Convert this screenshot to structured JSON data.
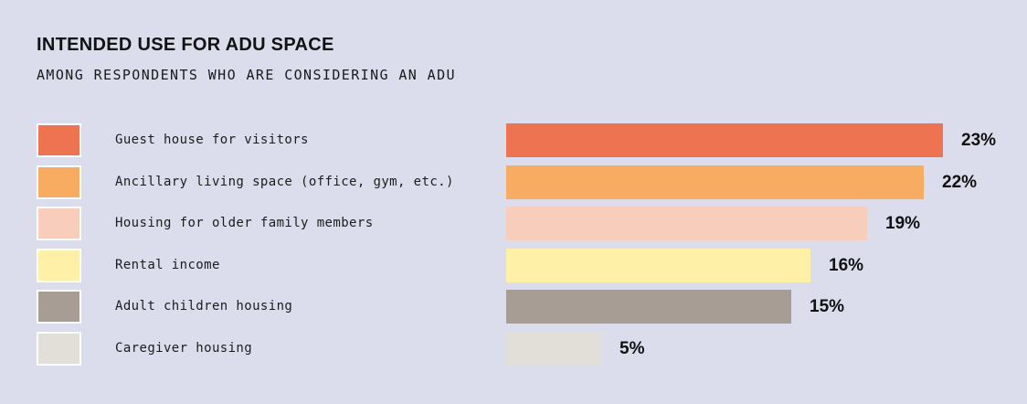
{
  "page": {
    "background": "#DBDDEC",
    "text_color": "#121212"
  },
  "header": {
    "title": "INTENDED USE FOR ADU SPACE",
    "subtitle": "AMONG RESPONDENTS WHO ARE CONSIDERING AN ADU"
  },
  "chart_data": {
    "type": "bar",
    "orientation": "horizontal",
    "title": "INTENDED USE FOR ADU SPACE",
    "subtitle": "AMONG RESPONDENTS WHO ARE CONSIDERING AN ADU",
    "categories": [
      "Guest house for visitors",
      "Ancillary living space (office, gym, etc.)",
      "Housing for older family members",
      "Rental income",
      "Adult children housing",
      "Caregiver housing"
    ],
    "values": [
      23,
      22,
      19,
      16,
      15,
      5
    ],
    "value_labels": [
      "23%",
      "22%",
      "19%",
      "16%",
      "15%",
      "5%"
    ],
    "unit": "percent",
    "colors": [
      "#EE7451",
      "#F7AC62",
      "#F9CDBC",
      "#FEF0A6",
      "#A79D94",
      "#E2DED8"
    ],
    "swatch_border_color": "#FFFFFF",
    "background": "#DBDDEC",
    "grid": false,
    "axis_labels_shown": false,
    "legend_position": "left-swatches",
    "value_label_position": "right-of-bar",
    "xlim": [
      0,
      23
    ]
  }
}
